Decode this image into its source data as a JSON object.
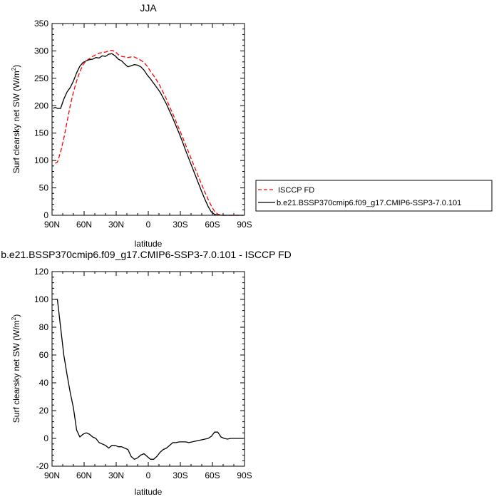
{
  "chart_data": [
    {
      "type": "line",
      "title": "JJA",
      "xlabel": "latitude",
      "ylabel": "Surf clearsky net SW",
      "yunit": "(W/m",
      "yunit_sup": "2",
      "yunit_close": ")",
      "xlim": [
        90,
        -90
      ],
      "ylim": [
        0,
        350
      ],
      "xticks": [
        90,
        60,
        30,
        0,
        -30,
        -60,
        -90
      ],
      "xtick_labels": [
        "90N",
        "60N",
        "30N",
        "0",
        "30S",
        "60S",
        "90S"
      ],
      "yticks": [
        0,
        50,
        100,
        150,
        200,
        250,
        300,
        350
      ],
      "ytick_labels": [
        "0",
        "50",
        "100",
        "150",
        "200",
        "250",
        "300",
        "350"
      ],
      "legend_position": "right",
      "series": [
        {
          "name": "ISCCP FD",
          "color": "#ff0000",
          "dash": "dashed",
          "x": [
            87,
            85,
            82,
            79,
            76,
            73,
            70,
            67,
            64,
            61,
            58,
            55,
            52,
            49,
            46,
            43,
            40,
            37,
            34,
            31,
            28,
            25,
            22,
            19,
            16,
            13,
            10,
            7,
            4,
            1,
            -2,
            -5,
            -8,
            -11,
            -14,
            -17,
            -20,
            -23,
            -26,
            -29,
            -32,
            -35,
            -38,
            -41,
            -44,
            -47,
            -50,
            -53,
            -56,
            -59,
            -62,
            -65,
            -68,
            -71,
            -74,
            -77,
            -80,
            -83,
            -86,
            -89
          ],
          "y": [
            95,
            97,
            115,
            140,
            170,
            200,
            225,
            245,
            262,
            275,
            282,
            286,
            290,
            293,
            296,
            297,
            298,
            300,
            301,
            299,
            293,
            290,
            289,
            288,
            289,
            289,
            286,
            283,
            279,
            272,
            263,
            255,
            246,
            236,
            224,
            212,
            198,
            185,
            171,
            157,
            143,
            128,
            114,
            99,
            85,
            70,
            56,
            42,
            29,
            17,
            7,
            2,
            0.5,
            0,
            0,
            0,
            0,
            0,
            0,
            0
          ]
        },
        {
          "name": "b.e21.BSSP370cmip6.f09_g17.CMIP6-SSP3-7.0.101",
          "color": "#000000",
          "dash": "solid",
          "x": [
            89,
            87,
            85,
            82,
            79,
            76,
            73,
            70,
            67,
            64,
            61,
            58,
            55,
            52,
            49,
            46,
            43,
            40,
            37,
            34,
            31,
            28,
            25,
            22,
            19,
            16,
            13,
            10,
            7,
            4,
            1,
            -2,
            -5,
            -8,
            -11,
            -14,
            -17,
            -20,
            -23,
            -26,
            -29,
            -32,
            -35,
            -38,
            -41,
            -44,
            -47,
            -50,
            -53,
            -56,
            -59,
            -62,
            -65,
            -68,
            -71,
            -74,
            -77,
            -80,
            -83,
            -86,
            -89
          ],
          "y": [
            195,
            197,
            195,
            195,
            212,
            225,
            233,
            245,
            260,
            272,
            279,
            282,
            284,
            285,
            288,
            287,
            291,
            290,
            294,
            295,
            291,
            285,
            282,
            276,
            271,
            273,
            275,
            274,
            271,
            265,
            256,
            249,
            241,
            233,
            225,
            214,
            203,
            190,
            177,
            163,
            149,
            134,
            118,
            103,
            88,
            73,
            58,
            43,
            29,
            16,
            6,
            1.5,
            0.5,
            0,
            0,
            0,
            0,
            0,
            0,
            0,
            0
          ]
        }
      ]
    },
    {
      "type": "line",
      "title": "b.e21.BSSP370cmip6.f09_g17.CMIP6-SSP3-7.0.101 - ISCCP FD",
      "xlabel": "latitude",
      "ylabel": "Surf clearsky net SW",
      "yunit": "(W/m",
      "yunit_sup": "2",
      "yunit_close": ")",
      "xlim": [
        90,
        -90
      ],
      "ylim": [
        -20,
        120
      ],
      "xticks": [
        90,
        60,
        30,
        0,
        -30,
        -60,
        -90
      ],
      "xtick_labels": [
        "90N",
        "60N",
        "30N",
        "0",
        "30S",
        "60S",
        "90S"
      ],
      "yticks": [
        -20,
        0,
        20,
        40,
        60,
        80,
        100,
        120
      ],
      "ytick_labels": [
        "-20",
        "0",
        "20",
        "40",
        "60",
        "80",
        "100",
        "120"
      ],
      "series": [
        {
          "color": "#000000",
          "dash": "solid",
          "x": [
            87,
            85,
            82,
            79,
            76,
            73,
            70,
            67,
            64,
            61,
            58,
            55,
            52,
            49,
            46,
            43,
            40,
            37,
            34,
            31,
            28,
            25,
            22,
            19,
            16,
            13,
            10,
            7,
            4,
            1,
            -2,
            -5,
            -8,
            -11,
            -14,
            -17,
            -20,
            -23,
            -26,
            -29,
            -32,
            -35,
            -38,
            -41,
            -44,
            -47,
            -50,
            -53,
            -56,
            -59,
            -62,
            -65,
            -68,
            -71,
            -74,
            -77,
            -80,
            -83,
            -86,
            -89
          ],
          "y": [
            100,
            100,
            80,
            60,
            46,
            33,
            22,
            6,
            1,
            3,
            4,
            3,
            1,
            0,
            -3,
            -4,
            -5,
            -7,
            -5,
            -5,
            -6,
            -6,
            -7,
            -8,
            -13,
            -15,
            -14,
            -12,
            -11,
            -13,
            -15,
            -15,
            -13,
            -10,
            -8,
            -7,
            -5,
            -3,
            -3,
            -2.5,
            -2.5,
            -2.5,
            -3,
            -2.5,
            -2,
            -1.5,
            -1,
            -0.5,
            0,
            1.5,
            4.5,
            4.5,
            1,
            0,
            -0.5,
            0,
            0,
            0,
            0,
            0
          ]
        }
      ]
    }
  ]
}
